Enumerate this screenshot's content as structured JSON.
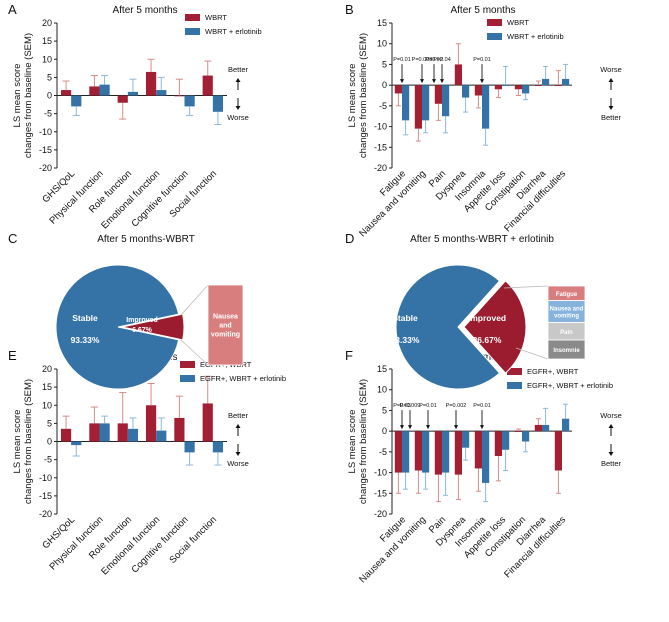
{
  "colors": {
    "red": "#a31f34",
    "blue": "#3573a7",
    "err_red": "#d98a8a",
    "err_blue": "#8fb8d8",
    "fatigue": "#d97e7e",
    "nausea": "#86b2dc",
    "pain": "#c8c8c8",
    "insomnia": "#8a8a8a",
    "pie_stable": "#3573a7",
    "pie_improved": "#9b1c2e",
    "nausea_box": "#d97e7e"
  },
  "chart_data": [
    {
      "panel": "A",
      "type": "bar",
      "title": "After 5 months",
      "ylabel": "LS mean score\nchanges from baseline (SEM)",
      "ylim": [
        -20,
        20
      ],
      "yticks": [
        -20,
        -15,
        -10,
        -5,
        0,
        5,
        10,
        15,
        20
      ],
      "categories": [
        "GHS/QoL",
        "Physical function",
        "Role function",
        "Emotional function",
        "Cognitive function",
        "Social function"
      ],
      "series": [
        {
          "name": "WBRT",
          "values": [
            1.5,
            2.5,
            -2.0,
            6.5,
            0.0,
            5.5
          ],
          "errors": [
            2.5,
            3.0,
            4.5,
            3.5,
            4.5,
            4.0
          ]
        },
        {
          "name": "WBRT + erlotinib",
          "values": [
            -3.0,
            3.0,
            1.0,
            1.5,
            -3.0,
            -4.5
          ],
          "errors": [
            2.5,
            2.5,
            3.5,
            3.5,
            2.5,
            3.5
          ]
        }
      ],
      "side_labels": {
        "up": "Better",
        "down": "Worse"
      },
      "pvalues": []
    },
    {
      "panel": "B",
      "type": "bar",
      "title": "After 5 months",
      "ylabel": "LS mean score\nchanges from baseline (SEM)",
      "ylim": [
        -20,
        15
      ],
      "yticks": [
        -20,
        -15,
        -10,
        -5,
        0,
        5,
        10,
        15
      ],
      "categories": [
        "Fatigue",
        "Nausea and vomiting",
        "Pain",
        "Dyspnea",
        "Insomnia",
        "Appetite loss",
        "Constipation",
        "Diarrhea",
        "Financial difficulties"
      ],
      "series": [
        {
          "name": "WBRT",
          "values": [
            -2.0,
            -10.5,
            -4.5,
            5.0,
            -2.5,
            -1.0,
            -1.0,
            0.0,
            0.0
          ],
          "errors": [
            3.0,
            3.0,
            4.0,
            5.0,
            3.0,
            2.0,
            1.5,
            1.0,
            3.5
          ]
        },
        {
          "name": "WBRT + erlotinib",
          "values": [
            -8.5,
            -8.5,
            -7.5,
            -3.0,
            -10.5,
            0.0,
            -2.0,
            1.5,
            1.5
          ],
          "errors": [
            3.5,
            3.0,
            4.0,
            3.5,
            4.0,
            4.5,
            1.5,
            3.0,
            3.5
          ]
        }
      ],
      "side_labels": {
        "up": "Worse",
        "down": "Better"
      },
      "pvalues": [
        {
          "cat": 0,
          "text": "P=0.01"
        },
        {
          "cat": 1,
          "text": "P=0.003"
        },
        {
          "cat": 1.6,
          "text": "P=0.02"
        },
        {
          "cat": 2,
          "text": "P=0.04"
        },
        {
          "cat": 4,
          "text": "P=0.01"
        }
      ]
    },
    {
      "panel": "C",
      "type": "pie",
      "title": "After 5 months-WBRT",
      "slices": [
        {
          "label": "Stable",
          "value": 93.33,
          "value_label": "93.33%"
        },
        {
          "label": "Improved",
          "value": 6.67,
          "value_label": "6.67%"
        }
      ],
      "breakdown": [
        "Nausea and vomiting"
      ]
    },
    {
      "panel": "D",
      "type": "pie",
      "title": "After 5 months-WBRT + erlotinib",
      "slices": [
        {
          "label": "Stable",
          "value": 73.33,
          "value_label": "73.33%"
        },
        {
          "label": "Improved",
          "value": 26.67,
          "value_label": "26.67%"
        }
      ],
      "breakdown": [
        "Fatigue",
        "Nausea and vomiting",
        "Pain",
        "Insomnie"
      ]
    },
    {
      "panel": "E",
      "type": "bar",
      "title": "After 5 months",
      "ylabel": "LS mean score\nchanges from baseline (SEM)",
      "ylim": [
        -20,
        20
      ],
      "yticks": [
        -20,
        -15,
        -10,
        -5,
        0,
        5,
        10,
        15,
        20
      ],
      "categories": [
        "GHS/QoL",
        "Physical function",
        "Role function",
        "Emotional function",
        "Cognitive function",
        "Social function"
      ],
      "series": [
        {
          "name": "EGFR+, WBRT",
          "values": [
            3.5,
            5.0,
            5.0,
            10.0,
            6.5,
            10.5
          ],
          "errors": [
            3.5,
            4.5,
            8.5,
            6.0,
            6.0,
            7.5
          ]
        },
        {
          "name": "EGFR+, WBRT + erlotinib",
          "values": [
            -1.0,
            5.0,
            3.5,
            3.0,
            -3.0,
            -3.0
          ],
          "errors": [
            3.0,
            2.0,
            3.0,
            3.5,
            3.5,
            3.5
          ]
        }
      ],
      "side_labels": {
        "up": "Better",
        "down": "Worse"
      },
      "pvalues": []
    },
    {
      "panel": "F",
      "type": "bar",
      "title": "After 5 months",
      "ylabel": "LS mean score\nchanges from baseline (SEM)",
      "ylim": [
        -20,
        15
      ],
      "yticks": [
        -20,
        -15,
        -10,
        -5,
        0,
        5,
        10,
        15
      ],
      "categories": [
        "Fatigue",
        "Nausea and vomiting",
        "Pain",
        "Dyspnea",
        "Insomnia",
        "Appetite loss",
        "Constipation",
        "Diarrhea",
        "Financial difficulties"
      ],
      "series": [
        {
          "name": "EGFR+, WBRT",
          "values": [
            -10.0,
            -9.5,
            -10.5,
            -10.5,
            -9.0,
            -6.0,
            0.0,
            1.5,
            -9.5
          ],
          "errors": [
            5.0,
            5.5,
            6.5,
            6.0,
            5.5,
            6.0,
            0.5,
            1.5,
            5.5
          ]
        },
        {
          "name": "EGFR+, WBRT + erlotinib",
          "values": [
            -10.0,
            -10.0,
            -10.0,
            -4.0,
            -12.5,
            -4.5,
            -2.5,
            1.5,
            3.0
          ],
          "errors": [
            4.0,
            4.0,
            5.5,
            3.0,
            4.5,
            5.0,
            2.5,
            4.0,
            3.5
          ]
        }
      ],
      "side_labels": {
        "up": "Worse",
        "down": "Better"
      },
      "pvalues": [
        {
          "cat": 0,
          "text": "P=0.03"
        },
        {
          "cat": 0.4,
          "text": "P=0.009"
        },
        {
          "cat": 1.3,
          "text": "P=0.01"
        },
        {
          "cat": 2.7,
          "text": "P=0.002"
        },
        {
          "cat": 4,
          "text": "P=0.01"
        }
      ]
    }
  ],
  "panel_letters": [
    "A",
    "B",
    "C",
    "D",
    "E",
    "F"
  ]
}
